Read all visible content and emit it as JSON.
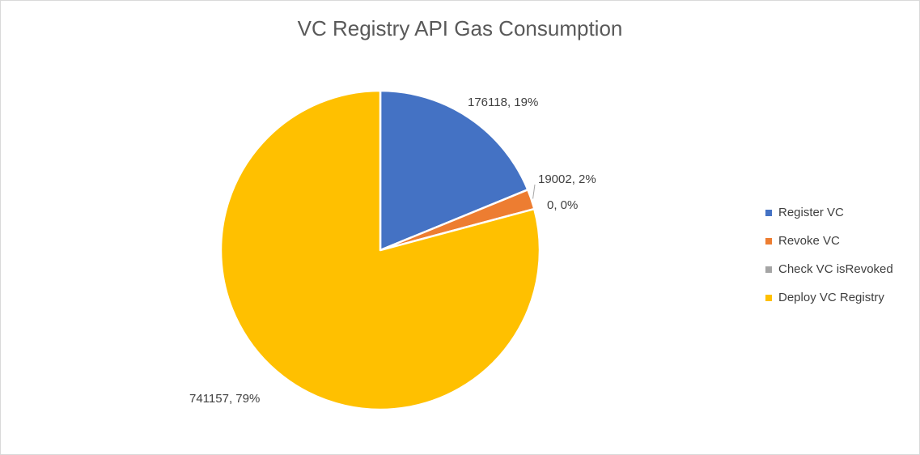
{
  "chart_data": {
    "type": "pie",
    "title": "VC Registry API Gas Consumption",
    "categories": [
      "Register VC",
      "Revoke VC",
      "Check VC isRevoked",
      "Deploy VC Registry"
    ],
    "values": [
      176118,
      19002,
      0,
      741157
    ],
    "data_labels": [
      "176118, 19%",
      "19002, 2%",
      "0, 0%",
      "741157, 79%"
    ],
    "colors": [
      "#4472C4",
      "#ED7D31",
      "#A5A5A5",
      "#FFC000"
    ],
    "legend_position": "right"
  }
}
